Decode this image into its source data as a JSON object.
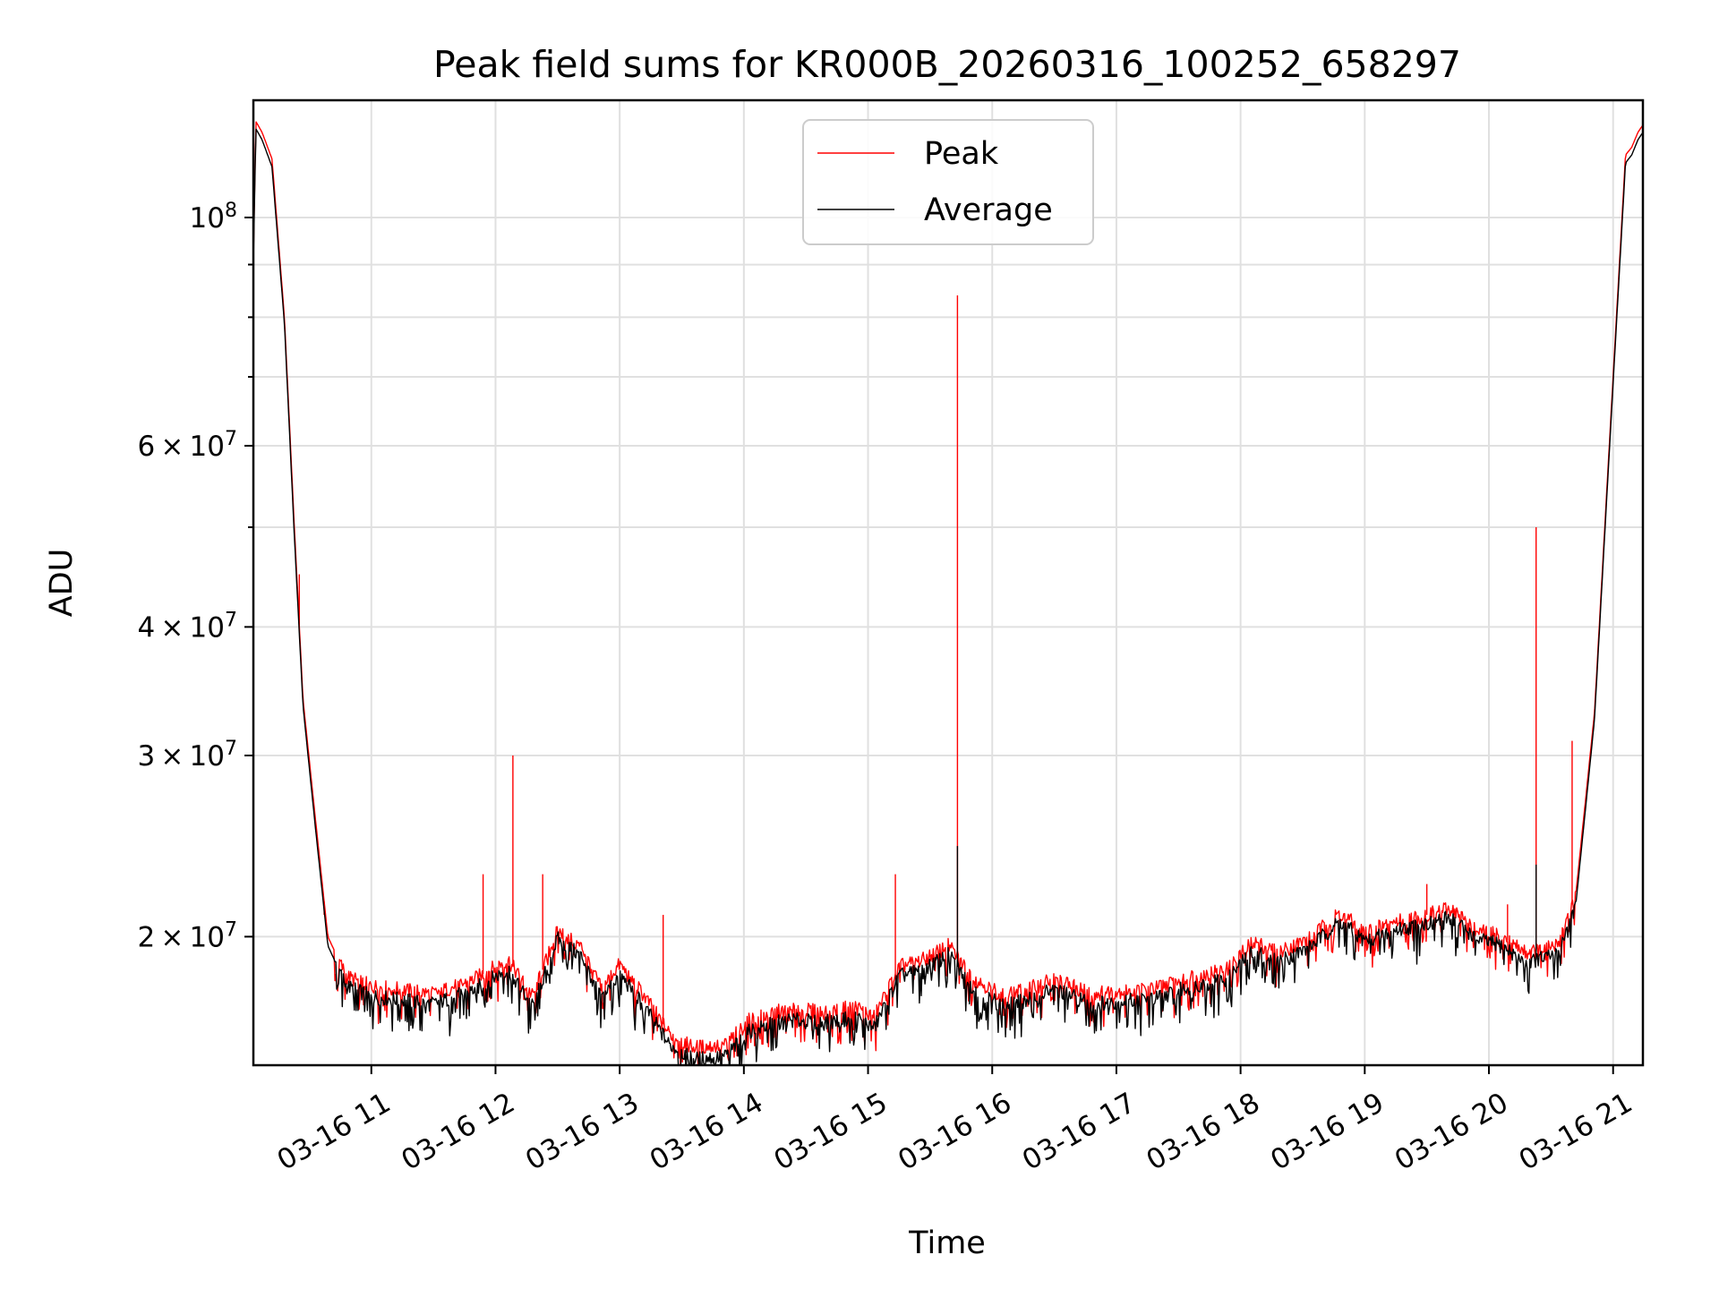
{
  "chart_data": {
    "type": "line",
    "title": "Peak field sums for KR000B_20260316_100252_658297",
    "xlabel": "Time",
    "ylabel": "ADU",
    "x_range": [
      "2026-03-16 10:03",
      "2026-03-16 21:15"
    ],
    "ylim": [
      15000000,
      130000000
    ],
    "y_scale": "log",
    "grid": true,
    "legend_position": "upper center",
    "x_ticks": [
      {
        "label": "03-16 11",
        "hour": 11
      },
      {
        "label": "03-16 12",
        "hour": 12
      },
      {
        "label": "03-16 13",
        "hour": 13
      },
      {
        "label": "03-16 14",
        "hour": 14
      },
      {
        "label": "03-16 15",
        "hour": 15
      },
      {
        "label": "03-16 16",
        "hour": 16
      },
      {
        "label": "03-16 17",
        "hour": 17
      },
      {
        "label": "03-16 18",
        "hour": 18
      },
      {
        "label": "03-16 19",
        "hour": 19
      },
      {
        "label": "03-16 20",
        "hour": 20
      },
      {
        "label": "03-16 21",
        "hour": 21
      }
    ],
    "y_ticks": [
      {
        "mantissa": "2",
        "exp": "7",
        "value": 20000000
      },
      {
        "mantissa": "3",
        "exp": "7",
        "value": 30000000
      },
      {
        "mantissa": "4",
        "exp": "7",
        "value": 40000000
      },
      {
        "mantissa": "6",
        "exp": "7",
        "value": 60000000
      },
      {
        "mantissa": "",
        "exp": "8",
        "value": 100000000
      }
    ],
    "y_times_sign": "×",
    "y_base": "10",
    "series": [
      {
        "name": "Peak",
        "color": "#ff0000",
        "points": [
          [
            10.05,
            91000000
          ],
          [
            10.07,
            124000000
          ],
          [
            10.12,
            121000000
          ],
          [
            10.2,
            114000000
          ],
          [
            10.3,
            80000000
          ],
          [
            10.38,
            50000000
          ],
          [
            10.45,
            34000000
          ],
          [
            10.55,
            26000000
          ],
          [
            10.65,
            20000000
          ],
          [
            10.8,
            18300000
          ],
          [
            11.0,
            17900000
          ],
          [
            11.5,
            17600000
          ],
          [
            11.8,
            18100000
          ],
          [
            12.1,
            19000000
          ],
          [
            12.3,
            17500000
          ],
          [
            12.5,
            20300000
          ],
          [
            12.7,
            19500000
          ],
          [
            12.85,
            17800000
          ],
          [
            13.0,
            18800000
          ],
          [
            13.2,
            17500000
          ],
          [
            13.4,
            16100000
          ],
          [
            13.6,
            15600000
          ],
          [
            13.85,
            15700000
          ],
          [
            14.05,
            16600000
          ],
          [
            14.35,
            17000000
          ],
          [
            14.65,
            16900000
          ],
          [
            14.9,
            17100000
          ],
          [
            15.05,
            16700000
          ],
          [
            15.25,
            18700000
          ],
          [
            15.45,
            19000000
          ],
          [
            15.65,
            19600000
          ],
          [
            15.85,
            18200000
          ],
          [
            16.1,
            17500000
          ],
          [
            16.3,
            17800000
          ],
          [
            16.5,
            18200000
          ],
          [
            16.8,
            17600000
          ],
          [
            17.0,
            17700000
          ],
          [
            17.3,
            17800000
          ],
          [
            17.6,
            18300000
          ],
          [
            17.9,
            18600000
          ],
          [
            18.1,
            19800000
          ],
          [
            18.3,
            19300000
          ],
          [
            18.55,
            19900000
          ],
          [
            18.8,
            21100000
          ],
          [
            19.0,
            20200000
          ],
          [
            19.25,
            20700000
          ],
          [
            19.5,
            21000000
          ],
          [
            19.7,
            21300000
          ],
          [
            19.9,
            20300000
          ],
          [
            20.1,
            20000000
          ],
          [
            20.3,
            19300000
          ],
          [
            20.55,
            19600000
          ],
          [
            20.7,
            22000000
          ],
          [
            20.85,
            33000000
          ],
          [
            21.0,
            70000000
          ],
          [
            21.1,
            115000000
          ],
          [
            21.15,
            117000000
          ],
          [
            21.2,
            121000000
          ],
          [
            21.24,
            123000000
          ]
        ],
        "spikes": [
          [
            10.42,
            45000000
          ],
          [
            10.62,
            21000000
          ],
          [
            11.9,
            23000000
          ],
          [
            12.14,
            30000000
          ],
          [
            12.38,
            23000000
          ],
          [
            13.35,
            21000000
          ],
          [
            15.22,
            23000000
          ],
          [
            15.72,
            84000000
          ],
          [
            19.5,
            22500000
          ],
          [
            20.15,
            21500000
          ],
          [
            20.38,
            50000000
          ],
          [
            20.67,
            31000000
          ]
        ]
      },
      {
        "name": "Average",
        "color": "#000000",
        "points": [
          [
            10.05,
            90000000
          ],
          [
            10.07,
            122000000
          ],
          [
            10.12,
            119000000
          ],
          [
            10.2,
            112000000
          ],
          [
            10.3,
            79000000
          ],
          [
            10.38,
            49000000
          ],
          [
            10.45,
            33500000
          ],
          [
            10.55,
            25500000
          ],
          [
            10.65,
            19600000
          ],
          [
            10.8,
            17900000
          ],
          [
            11.0,
            17500000
          ],
          [
            11.5,
            17200000
          ],
          [
            11.8,
            17700000
          ],
          [
            12.1,
            18600000
          ],
          [
            12.3,
            17100000
          ],
          [
            12.5,
            19900000
          ],
          [
            12.7,
            19100000
          ],
          [
            12.85,
            17400000
          ],
          [
            13.0,
            18400000
          ],
          [
            13.2,
            17100000
          ],
          [
            13.4,
            15700000
          ],
          [
            13.6,
            15200000
          ],
          [
            13.85,
            15300000
          ],
          [
            14.05,
            16200000
          ],
          [
            14.35,
            16600000
          ],
          [
            14.65,
            16500000
          ],
          [
            14.9,
            16700000
          ],
          [
            15.05,
            16300000
          ],
          [
            15.25,
            18300000
          ],
          [
            15.45,
            18600000
          ],
          [
            15.65,
            19200000
          ],
          [
            15.85,
            17800000
          ],
          [
            16.1,
            17100000
          ],
          [
            16.3,
            17400000
          ],
          [
            16.5,
            17800000
          ],
          [
            16.8,
            17200000
          ],
          [
            17.0,
            17300000
          ],
          [
            17.3,
            17400000
          ],
          [
            17.6,
            17900000
          ],
          [
            17.9,
            18200000
          ],
          [
            18.1,
            19400000
          ],
          [
            18.3,
            18900000
          ],
          [
            18.55,
            19500000
          ],
          [
            18.8,
            20700000
          ],
          [
            19.0,
            19800000
          ],
          [
            19.25,
            20300000
          ],
          [
            19.5,
            20600000
          ],
          [
            19.7,
            20900000
          ],
          [
            19.9,
            19900000
          ],
          [
            20.1,
            19600000
          ],
          [
            20.3,
            18900000
          ],
          [
            20.55,
            19200000
          ],
          [
            20.7,
            21500000
          ],
          [
            20.85,
            32500000
          ],
          [
            21.0,
            69000000
          ],
          [
            21.1,
            113000000
          ],
          [
            21.15,
            115000000
          ],
          [
            21.2,
            119000000
          ],
          [
            21.24,
            121000000
          ]
        ],
        "spikes": [
          [
            15.72,
            24500000
          ],
          [
            20.38,
            23500000
          ]
        ]
      }
    ]
  }
}
